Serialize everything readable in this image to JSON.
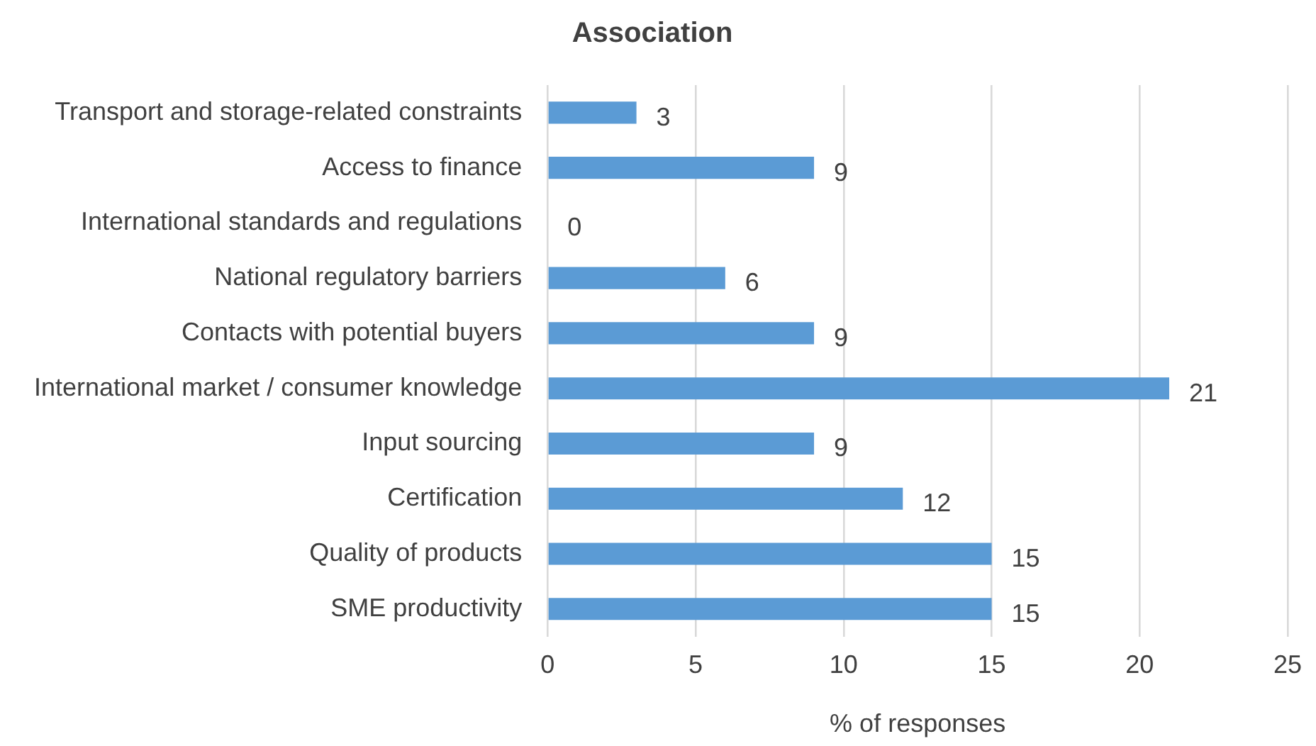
{
  "chart_data": {
    "type": "bar",
    "orientation": "horizontal",
    "title": "Association",
    "xlabel": "% of responses",
    "categories": [
      "Transport and storage-related constraints",
      "Access to finance",
      "International standards and regulations",
      "National regulatory barriers",
      "Contacts with potential buyers",
      "International market / consumer knowledge",
      "Input sourcing",
      "Certification",
      "Quality of products",
      "SME productivity"
    ],
    "values": [
      3,
      9,
      0,
      6,
      9,
      21,
      9,
      12,
      15,
      15
    ],
    "color": "#5b9bd5",
    "xlim": [
      0,
      25
    ],
    "xticks": [
      0,
      5,
      10,
      15,
      20,
      25
    ],
    "grid": "x",
    "data_labels": true
  }
}
